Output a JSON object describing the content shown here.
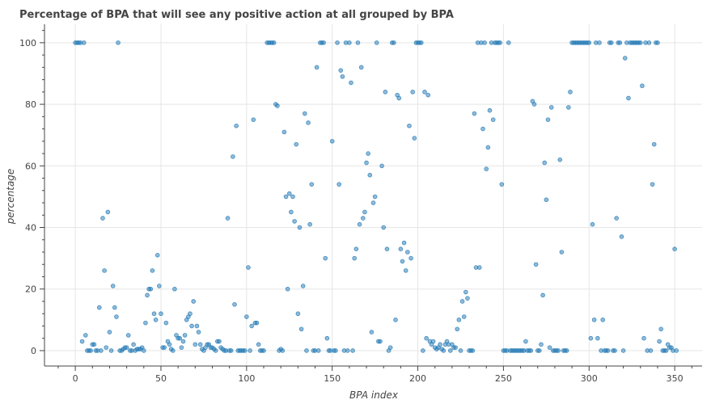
{
  "chart_data": {
    "type": "scatter",
    "title": "Percentage of BPA that will see any positive action at all grouped by BPA",
    "xlabel": "BPA index",
    "ylabel": "percentage",
    "xlim": [
      -18,
      366
    ],
    "ylim": [
      -5,
      106
    ],
    "xticks": [
      0,
      50,
      100,
      150,
      200,
      250,
      300,
      350
    ],
    "yticks": [
      0,
      20,
      40,
      60,
      80,
      100
    ],
    "grid": true,
    "color": "#1f77b4",
    "points": [
      [
        0,
        100
      ],
      [
        1,
        100
      ],
      [
        2,
        100
      ],
      [
        3,
        100
      ],
      [
        5,
        100
      ],
      [
        25,
        100
      ],
      [
        112,
        100
      ],
      [
        113,
        100
      ],
      [
        114,
        100
      ],
      [
        115,
        100
      ],
      [
        116,
        100
      ],
      [
        143,
        100
      ],
      [
        144,
        100
      ],
      [
        145,
        100
      ],
      [
        153,
        100
      ],
      [
        158,
        100
      ],
      [
        160,
        100
      ],
      [
        165,
        100
      ],
      [
        176,
        100
      ],
      [
        185,
        100
      ],
      [
        186,
        100
      ],
      [
        199,
        100
      ],
      [
        200,
        100
      ],
      [
        201,
        100
      ],
      [
        202,
        100
      ],
      [
        235,
        100
      ],
      [
        237,
        100
      ],
      [
        239,
        100
      ],
      [
        243,
        100
      ],
      [
        245,
        100
      ],
      [
        246,
        100
      ],
      [
        247,
        100
      ],
      [
        248,
        100
      ],
      [
        253,
        100
      ],
      [
        290,
        100
      ],
      [
        291,
        100
      ],
      [
        292,
        100
      ],
      [
        293,
        100
      ],
      [
        294,
        100
      ],
      [
        295,
        100
      ],
      [
        296,
        100
      ],
      [
        297,
        100
      ],
      [
        298,
        100
      ],
      [
        299,
        100
      ],
      [
        300,
        100
      ],
      [
        304,
        100
      ],
      [
        306,
        100
      ],
      [
        312,
        100
      ],
      [
        313,
        100
      ],
      [
        317,
        100
      ],
      [
        318,
        100
      ],
      [
        322,
        100
      ],
      [
        324,
        100
      ],
      [
        325,
        100
      ],
      [
        326,
        100
      ],
      [
        327,
        100
      ],
      [
        328,
        100
      ],
      [
        329,
        100
      ],
      [
        330,
        100
      ],
      [
        333,
        100
      ],
      [
        335,
        100
      ],
      [
        339,
        100
      ],
      [
        340,
        100
      ],
      [
        4,
        3
      ],
      [
        6,
        5
      ],
      [
        7,
        0
      ],
      [
        8,
        0
      ],
      [
        9,
        0
      ],
      [
        10,
        2
      ],
      [
        11,
        2
      ],
      [
        12,
        0
      ],
      [
        13,
        0
      ],
      [
        14,
        14
      ],
      [
        15,
        0
      ],
      [
        16,
        43
      ],
      [
        17,
        26
      ],
      [
        18,
        1
      ],
      [
        19,
        45
      ],
      [
        20,
        6
      ],
      [
        21,
        0
      ],
      [
        22,
        21
      ],
      [
        23,
        14
      ],
      [
        24,
        11
      ],
      [
        26,
        0
      ],
      [
        27,
        0
      ],
      [
        28,
        0.5
      ],
      [
        29,
        1
      ],
      [
        30,
        1
      ],
      [
        31,
        5
      ],
      [
        32,
        0
      ],
      [
        33,
        0
      ],
      [
        34,
        2
      ],
      [
        35,
        0
      ],
      [
        36,
        0.5
      ],
      [
        37,
        0.5
      ],
      [
        38,
        0.5
      ],
      [
        39,
        1
      ],
      [
        40,
        0
      ],
      [
        41,
        9
      ],
      [
        42,
        18
      ],
      [
        43,
        20
      ],
      [
        44,
        20
      ],
      [
        45,
        26
      ],
      [
        46,
        12
      ],
      [
        47,
        10
      ],
      [
        48,
        31
      ],
      [
        49,
        21
      ],
      [
        50,
        12
      ],
      [
        51,
        1
      ],
      [
        52,
        1
      ],
      [
        53,
        9
      ],
      [
        54,
        3
      ],
      [
        55,
        2
      ],
      [
        56,
        0.5
      ],
      [
        57,
        0
      ],
      [
        58,
        20
      ],
      [
        59,
        5
      ],
      [
        60,
        4
      ],
      [
        61,
        4
      ],
      [
        62,
        1
      ],
      [
        63,
        3
      ],
      [
        64,
        5
      ],
      [
        65,
        10
      ],
      [
        66,
        11
      ],
      [
        67,
        12
      ],
      [
        68,
        8
      ],
      [
        69,
        16
      ],
      [
        70,
        2
      ],
      [
        71,
        8
      ],
      [
        72,
        6
      ],
      [
        73,
        2
      ],
      [
        74,
        0.5
      ],
      [
        75,
        0
      ],
      [
        76,
        1
      ],
      [
        77,
        2
      ],
      [
        78,
        2
      ],
      [
        79,
        1
      ],
      [
        80,
        1
      ],
      [
        81,
        0.5
      ],
      [
        82,
        0
      ],
      [
        83,
        3
      ],
      [
        84,
        3
      ],
      [
        85,
        1
      ],
      [
        86,
        0.5
      ],
      [
        87,
        0
      ],
      [
        88,
        0
      ],
      [
        89,
        43
      ],
      [
        90,
        0
      ],
      [
        91,
        0
      ],
      [
        92,
        63
      ],
      [
        93,
        15
      ],
      [
        94,
        73
      ],
      [
        95,
        0
      ],
      [
        96,
        0
      ],
      [
        97,
        0
      ],
      [
        98,
        0
      ],
      [
        99,
        0
      ],
      [
        100,
        11
      ],
      [
        101,
        27
      ],
      [
        102,
        0
      ],
      [
        103,
        8
      ],
      [
        104,
        75
      ],
      [
        105,
        9
      ],
      [
        106,
        9
      ],
      [
        107,
        2
      ],
      [
        108,
        0
      ],
      [
        109,
        0
      ],
      [
        110,
        0
      ],
      [
        117,
        80
      ],
      [
        118,
        79.5
      ],
      [
        119,
        0
      ],
      [
        120,
        0.5
      ],
      [
        121,
        0
      ],
      [
        122,
        71
      ],
      [
        123,
        50
      ],
      [
        124,
        20
      ],
      [
        125,
        51
      ],
      [
        126,
        45
      ],
      [
        127,
        50
      ],
      [
        128,
        42
      ],
      [
        129,
        67
      ],
      [
        130,
        12
      ],
      [
        131,
        40
      ],
      [
        132,
        7
      ],
      [
        133,
        21
      ],
      [
        134,
        77
      ],
      [
        135,
        0
      ],
      [
        136,
        74
      ],
      [
        137,
        41
      ],
      [
        138,
        54
      ],
      [
        139,
        0
      ],
      [
        140,
        0
      ],
      [
        141,
        92
      ],
      [
        142,
        0
      ],
      [
        146,
        30
      ],
      [
        147,
        4
      ],
      [
        148,
        0
      ],
      [
        149,
        0
      ],
      [
        150,
        68
      ],
      [
        151,
        0
      ],
      [
        152,
        0
      ],
      [
        154,
        54
      ],
      [
        155,
        91
      ],
      [
        156,
        89
      ],
      [
        157,
        0
      ],
      [
        159,
        0
      ],
      [
        161,
        87
      ],
      [
        162,
        0
      ],
      [
        163,
        30
      ],
      [
        164,
        33
      ],
      [
        166,
        41
      ],
      [
        167,
        92
      ],
      [
        168,
        43
      ],
      [
        169,
        45
      ],
      [
        170,
        61
      ],
      [
        171,
        64
      ],
      [
        172,
        57
      ],
      [
        173,
        6
      ],
      [
        174,
        48
      ],
      [
        175,
        50
      ],
      [
        177,
        3
      ],
      [
        178,
        3
      ],
      [
        179,
        60
      ],
      [
        180,
        40
      ],
      [
        181,
        84
      ],
      [
        182,
        33
      ],
      [
        183,
        0
      ],
      [
        184,
        1
      ],
      [
        187,
        10
      ],
      [
        188,
        83
      ],
      [
        189,
        82
      ],
      [
        190,
        33
      ],
      [
        191,
        29
      ],
      [
        192,
        35
      ],
      [
        193,
        26
      ],
      [
        194,
        32
      ],
      [
        195,
        73
      ],
      [
        196,
        30
      ],
      [
        197,
        84
      ],
      [
        198,
        69
      ],
      [
        203,
        0
      ],
      [
        204,
        84
      ],
      [
        205,
        4
      ],
      [
        206,
        83
      ],
      [
        207,
        3
      ],
      [
        208,
        2
      ],
      [
        209,
        3
      ],
      [
        210,
        1
      ],
      [
        211,
        0.5
      ],
      [
        212,
        1
      ],
      [
        213,
        2
      ],
      [
        214,
        0.5
      ],
      [
        215,
        0
      ],
      [
        216,
        2
      ],
      [
        217,
        3
      ],
      [
        218,
        2
      ],
      [
        219,
        0
      ],
      [
        220,
        2
      ],
      [
        221,
        1
      ],
      [
        222,
        1
      ],
      [
        223,
        7
      ],
      [
        224,
        10
      ],
      [
        225,
        0
      ],
      [
        226,
        16
      ],
      [
        227,
        11
      ],
      [
        228,
        19
      ],
      [
        229,
        17
      ],
      [
        230,
        0
      ],
      [
        231,
        0
      ],
      [
        232,
        0
      ],
      [
        233,
        77
      ],
      [
        234,
        27
      ],
      [
        236,
        27
      ],
      [
        238,
        72
      ],
      [
        240,
        59
      ],
      [
        241,
        66
      ],
      [
        242,
        78
      ],
      [
        244,
        75
      ],
      [
        249,
        54
      ],
      [
        250,
        0
      ],
      [
        251,
        0
      ],
      [
        252,
        0
      ],
      [
        254,
        0
      ],
      [
        255,
        0
      ],
      [
        256,
        0
      ],
      [
        257,
        0
      ],
      [
        258,
        0
      ],
      [
        259,
        0
      ],
      [
        260,
        0
      ],
      [
        261,
        0
      ],
      [
        262,
        0
      ],
      [
        263,
        3
      ],
      [
        264,
        0
      ],
      [
        265,
        0
      ],
      [
        266,
        0
      ],
      [
        267,
        81
      ],
      [
        268,
        80
      ],
      [
        269,
        28
      ],
      [
        270,
        0
      ],
      [
        271,
        0
      ],
      [
        272,
        2
      ],
      [
        273,
        18
      ],
      [
        274,
        61
      ],
      [
        275,
        49
      ],
      [
        276,
        75
      ],
      [
        277,
        1
      ],
      [
        278,
        79
      ],
      [
        279,
        0
      ],
      [
        280,
        0
      ],
      [
        281,
        0
      ],
      [
        282,
        0
      ],
      [
        283,
        62
      ],
      [
        284,
        32
      ],
      [
        285,
        0
      ],
      [
        286,
        0
      ],
      [
        287,
        0
      ],
      [
        288,
        79
      ],
      [
        289,
        84
      ],
      [
        301,
        4
      ],
      [
        302,
        41
      ],
      [
        303,
        10
      ],
      [
        305,
        4
      ],
      [
        307,
        0
      ],
      [
        308,
        10
      ],
      [
        309,
        0
      ],
      [
        310,
        0
      ],
      [
        311,
        0
      ],
      [
        314,
        0
      ],
      [
        315,
        0
      ],
      [
        316,
        43
      ],
      [
        319,
        37
      ],
      [
        320,
        0
      ],
      [
        321,
        95
      ],
      [
        323,
        82
      ],
      [
        331,
        86
      ],
      [
        332,
        4
      ],
      [
        334,
        0
      ],
      [
        336,
        0
      ],
      [
        337,
        54
      ],
      [
        338,
        67
      ],
      [
        341,
        3
      ],
      [
        342,
        7
      ],
      [
        343,
        0
      ],
      [
        344,
        0
      ],
      [
        345,
        0
      ],
      [
        346,
        2
      ],
      [
        347,
        1
      ],
      [
        348,
        1
      ],
      [
        349,
        0
      ],
      [
        350,
        33
      ],
      [
        351,
        0
      ]
    ]
  }
}
